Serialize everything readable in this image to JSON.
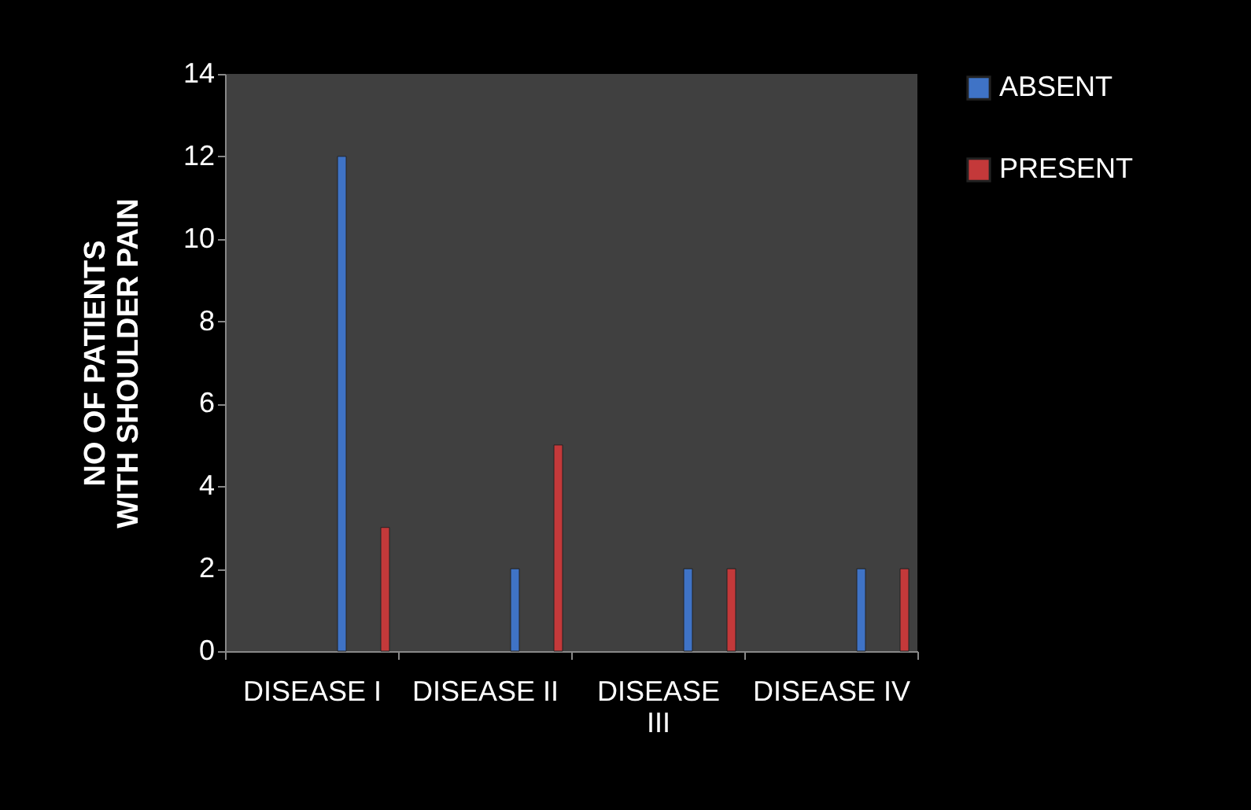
{
  "chart_data": {
    "type": "bar",
    "ylabel": "NO OF PATIENTS WITH SHOULDER PAIN",
    "categories": [
      "DISEASE I",
      "DISEASE II",
      "DISEASE III",
      "DISEASE IV"
    ],
    "series": [
      {
        "name": "ABSENT",
        "color": "#3f73c6",
        "values": [
          12,
          2,
          2,
          2
        ]
      },
      {
        "name": "PRESENT",
        "color": "#c4393a",
        "values": [
          3,
          5,
          2,
          2
        ]
      }
    ],
    "ylim": [
      0,
      14
    ],
    "yticks": [
      0,
      2,
      4,
      6,
      8,
      10,
      12,
      14
    ],
    "legend": "right"
  }
}
